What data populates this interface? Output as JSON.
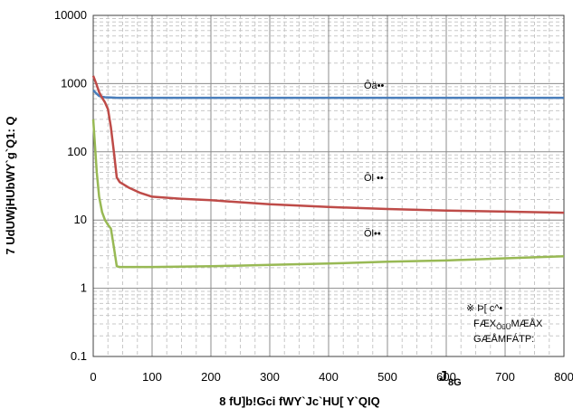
{
  "chart_data": {
    "type": "line",
    "title": "",
    "xlabel": "8 fU]b!Gci fWY`Jc`HU[ Y`QIQ",
    "ylabel": "7 UdUWjHUbWY`g`Q1: Q",
    "x_unit_label": "J",
    "x_unit_subscript": "8G",
    "xlim": [
      0,
      800
    ],
    "ylim": [
      0.1,
      10000
    ],
    "y_scale": "log",
    "grid": true,
    "x_ticks": [
      0,
      100,
      200,
      300,
      400,
      500,
      600,
      700,
      800
    ],
    "x_tick_labels": [
      "0",
      "100",
      "200",
      "300",
      "400",
      "500",
      "600",
      "700",
      "800"
    ],
    "y_ticks": [
      0.1,
      1,
      10,
      100,
      1000,
      10000
    ],
    "y_tick_labels": [
      "0.1",
      "1",
      "10",
      "100",
      "1000",
      "10000"
    ],
    "series": [
      {
        "color": "#4a7ebb",
        "x": [
          0,
          5,
          10,
          15,
          20,
          40,
          100,
          200,
          300,
          400,
          500,
          600,
          700,
          800
        ],
        "y": [
          800,
          720,
          660,
          640,
          630,
          620,
          620,
          620,
          620,
          620,
          620,
          620,
          620,
          620
        ]
      },
      {
        "color": "#be4b48",
        "x": [
          0,
          5,
          10,
          15,
          20,
          25,
          30,
          35,
          40,
          45,
          60,
          80,
          100,
          150,
          200,
          300,
          400,
          500,
          600,
          700,
          800
        ],
        "y": [
          1300,
          1000,
          750,
          620,
          530,
          420,
          230,
          100,
          42,
          36,
          30,
          25,
          22,
          20.5,
          19.5,
          17,
          15.5,
          14.5,
          13.8,
          13.3,
          12.8
        ]
      },
      {
        "color": "#98b954",
        "x": [
          0,
          3,
          6,
          10,
          15,
          20,
          25,
          30,
          35,
          40,
          45,
          100,
          200,
          300,
          400,
          500,
          600,
          700,
          800
        ],
        "y": [
          300,
          120,
          50,
          22,
          13,
          10,
          8.5,
          7.5,
          4,
          2.1,
          2.05,
          2.05,
          2.1,
          2.2,
          2.3,
          2.45,
          2.55,
          2.75,
          2.95
        ]
      }
    ],
    "annotations": [
      {
        "text": "Ôä••",
        "x": 460,
        "y": 950
      },
      {
        "text": "Ôl ••",
        "x": 460,
        "y": 42
      },
      {
        "text": "Öl••",
        "x": 460,
        "y": 6.5
      }
    ],
    "note": {
      "lines": [
        "※ Þ[ c^•",
        "FÆX",
        "GÆÅMFÁTP:"
      ],
      "line2_sub": "ÔûÜ",
      "line2_tail": "MÆÅX"
    }
  }
}
